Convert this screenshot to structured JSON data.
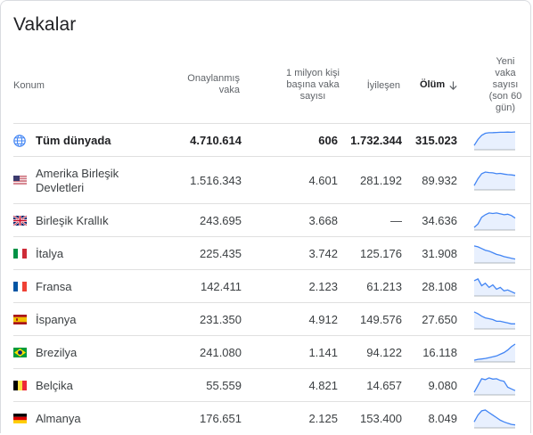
{
  "title": "Vakalar",
  "headers": {
    "konum": "Konum",
    "onaylanmis": [
      "Onaylanmış",
      "vaka"
    ],
    "milyon": [
      "1 milyon kişi",
      "başına vaka",
      "sayısı"
    ],
    "iyilesen": "İyileşen",
    "olum": "Ölüm",
    "yeni": [
      "Yeni",
      "vaka",
      "sayısı",
      "(son 60",
      "gün)"
    ]
  },
  "colors": {
    "sparkline": "#4285f4",
    "sparkline_fill": "#e8f0fe"
  },
  "rows": [
    {
      "name": "Tüm dünyada",
      "confirmed": "4.710.614",
      "per_million": "606",
      "recovered": "1.732.344",
      "deaths": "315.023",
      "icon": "globe-icon"
    },
    {
      "name": "Amerika Birleşik Devletleri",
      "confirmed": "1.516.343",
      "per_million": "4.601",
      "recovered": "281.192",
      "deaths": "89.932",
      "icon": "us-flag-icon"
    },
    {
      "name": "Birleşik Krallık",
      "confirmed": "243.695",
      "per_million": "3.668",
      "recovered": "—",
      "deaths": "34.636",
      "icon": "uk-flag-icon"
    },
    {
      "name": "İtalya",
      "confirmed": "225.435",
      "per_million": "3.742",
      "recovered": "125.176",
      "deaths": "31.908",
      "icon": "italy-flag-icon"
    },
    {
      "name": "Fransa",
      "confirmed": "142.411",
      "per_million": "2.123",
      "recovered": "61.213",
      "deaths": "28.108",
      "icon": "france-flag-icon"
    },
    {
      "name": "İspanya",
      "confirmed": "231.350",
      "per_million": "4.912",
      "recovered": "149.576",
      "deaths": "27.650",
      "icon": "spain-flag-icon"
    },
    {
      "name": "Brezilya",
      "confirmed": "241.080",
      "per_million": "1.141",
      "recovered": "94.122",
      "deaths": "16.118",
      "icon": "brazil-flag-icon"
    },
    {
      "name": "Belçika",
      "confirmed": "55.559",
      "per_million": "4.821",
      "recovered": "14.657",
      "deaths": "9.080",
      "icon": "belgium-flag-icon"
    },
    {
      "name": "Almanya",
      "confirmed": "176.651",
      "per_million": "2.125",
      "recovered": "153.400",
      "deaths": "8.049",
      "icon": "germany-flag-icon"
    }
  ]
}
